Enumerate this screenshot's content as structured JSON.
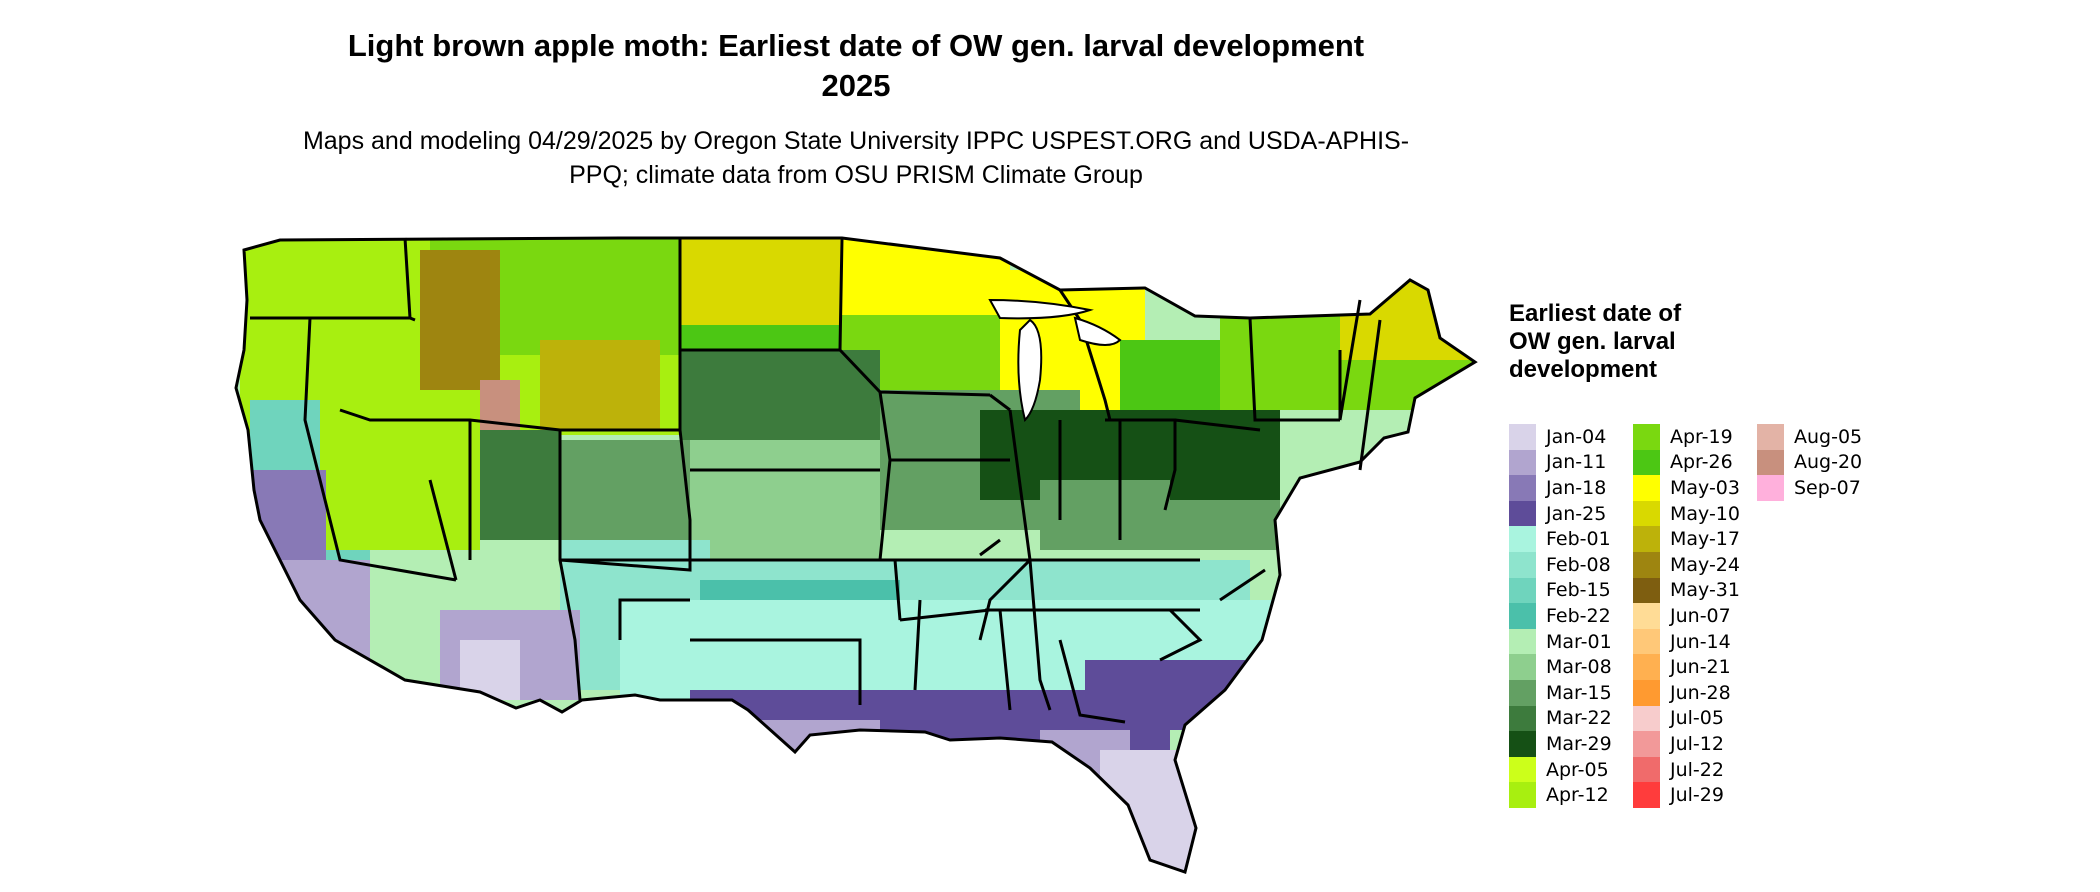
{
  "title": "Light brown apple moth: Earliest date of OW gen. larval development 2025",
  "subtitle": "Maps and modeling 04/29/2025 by Oregon State University IPPC USPEST.ORG and USDA-APHIS-PPQ; climate data from OSU PRISM Climate Group",
  "legend": {
    "title": "Earliest date of OW gen. larval development",
    "items": [
      {
        "label": "Jan-04",
        "color": "#d9d3e9"
      },
      {
        "label": "Jan-11",
        "color": "#b1a5cf"
      },
      {
        "label": "Jan-18",
        "color": "#8879b6"
      },
      {
        "label": "Jan-25",
        "color": "#5e4c99"
      },
      {
        "label": "Feb-01",
        "color": "#a9f4df"
      },
      {
        "label": "Feb-08",
        "color": "#8ee4cd"
      },
      {
        "label": "Feb-15",
        "color": "#6fd4bd"
      },
      {
        "label": "Feb-22",
        "color": "#4bc0aa"
      },
      {
        "label": "Mar-01",
        "color": "#b4eeb4"
      },
      {
        "label": "Mar-08",
        "color": "#8ecf8e"
      },
      {
        "label": "Mar-15",
        "color": "#63a063"
      },
      {
        "label": "Mar-22",
        "color": "#3d7b3d"
      },
      {
        "label": "Mar-29",
        "color": "#155015"
      },
      {
        "label": "Apr-05",
        "color": "#ccff1a"
      },
      {
        "label": "Apr-12",
        "color": "#a8ef10"
      },
      {
        "label": "Apr-19",
        "color": "#7ad810"
      },
      {
        "label": "Apr-26",
        "color": "#4cc714"
      },
      {
        "label": "May-03",
        "color": "#ffff00"
      },
      {
        "label": "May-10",
        "color": "#d9d900"
      },
      {
        "label": "May-17",
        "color": "#bdb20a"
      },
      {
        "label": "May-24",
        "color": "#9e8510"
      },
      {
        "label": "May-31",
        "color": "#7e5e10"
      },
      {
        "label": "Jun-07",
        "color": "#ffdc96"
      },
      {
        "label": "Jun-14",
        "color": "#ffc878"
      },
      {
        "label": "Jun-21",
        "color": "#ffb050"
      },
      {
        "label": "Jun-28",
        "color": "#ff9a30"
      },
      {
        "label": "Jul-05",
        "color": "#f7cccc"
      },
      {
        "label": "Jul-12",
        "color": "#f29999"
      },
      {
        "label": "Jul-22",
        "color": "#f06b6b"
      },
      {
        "label": "Jul-29",
        "color": "#ff3c3c"
      },
      {
        "label": "Aug-05",
        "color": "#e3b3a6"
      },
      {
        "label": "Aug-20",
        "color": "#c8907e"
      },
      {
        "label": "Sep-07",
        "color": "#ffb0dc"
      }
    ]
  }
}
